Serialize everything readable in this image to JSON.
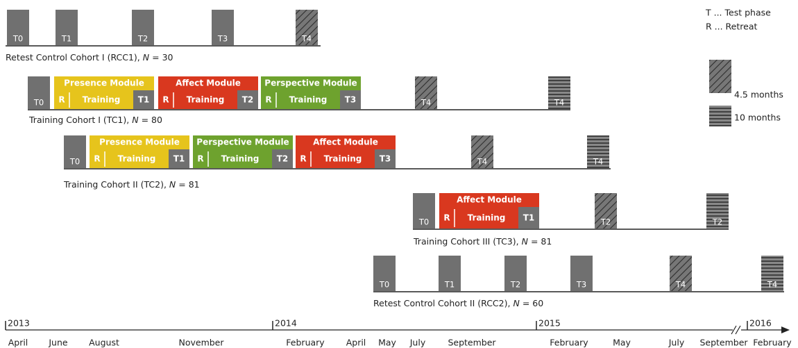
{
  "legend": {
    "test": "T ... Test phase",
    "retreat": "R ... Retreat",
    "hatched": "4.5 months",
    "striped": "10 months"
  },
  "cohorts": [
    {
      "label": "Retest Control Cohort I (RCC1),",
      "n_symbol": "N",
      "n_text": "= 30",
      "tests": [
        "T0",
        "T1",
        "T2",
        "T3",
        "T4"
      ],
      "modules": []
    },
    {
      "label": "Training Cohort I (TC1),",
      "n_symbol": "N",
      "n_text": "= 80",
      "tests": [
        "T0",
        "T4",
        "T4"
      ],
      "modules": [
        {
          "title": "Presence Module",
          "retreat": "R",
          "training": "Training",
          "test": "T1"
        },
        {
          "title": "Affect Module",
          "retreat": "R",
          "training": "Training",
          "test": "T2"
        },
        {
          "title": "Perspective Module",
          "retreat": "R",
          "training": "Training",
          "test": "T3"
        }
      ]
    },
    {
      "label": "Training Cohort II (TC2),",
      "n_symbol": "N",
      "n_text": "= 81",
      "tests": [
        "T0",
        "T4",
        "T4"
      ],
      "modules": [
        {
          "title": "Presence Module",
          "retreat": "R",
          "training": "Training",
          "test": "T1"
        },
        {
          "title": "Perspective Module",
          "retreat": "R",
          "training": "Training",
          "test": "T2"
        },
        {
          "title": "Affect Module",
          "retreat": "R",
          "training": "Training",
          "test": "T3"
        }
      ]
    },
    {
      "label": "Training Cohort III (TC3),",
      "n_symbol": "N",
      "n_text": "= 81",
      "tests": [
        "T0",
        "T2",
        "T2"
      ],
      "modules": [
        {
          "title": "Affect Module",
          "retreat": "R",
          "training": "Training",
          "test": "T1"
        }
      ]
    },
    {
      "label": "Retest Control Cohort II (RCC2),",
      "n_symbol": "N",
      "n_text": "= 60",
      "tests": [
        "T0",
        "T1",
        "T2",
        "T3",
        "T4",
        "T4"
      ],
      "modules": []
    }
  ],
  "timeline": {
    "years": [
      "2013",
      "2014",
      "2015",
      "2016"
    ],
    "months": [
      "April",
      "June",
      "August",
      "November",
      "February",
      "April",
      "May",
      "July",
      "September",
      "February",
      "May",
      "July",
      "September",
      "February"
    ]
  }
}
